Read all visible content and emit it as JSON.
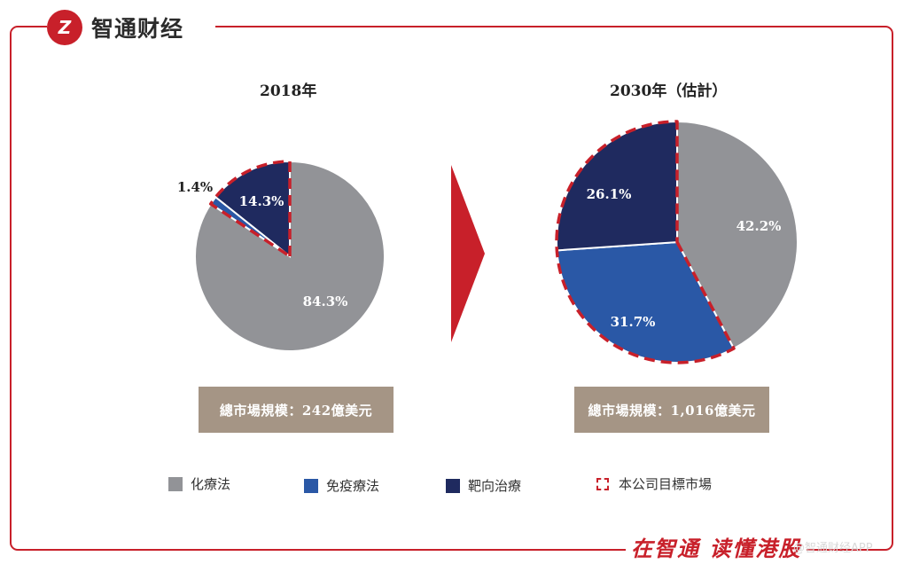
{
  "brand": {
    "logo_glyph": "Z",
    "name": "智通财经"
  },
  "colors": {
    "frame": "#c8202a",
    "chemo": "#929397",
    "immuno": "#2a58a6",
    "targeted": "#1f2a5f",
    "target_market": "#c8202a",
    "size_box": "#a59585"
  },
  "chart_data": [
    {
      "type": "pie",
      "title": "2018年",
      "slices": [
        {
          "name": "化療法",
          "value": 84.3,
          "label": "84.3%"
        },
        {
          "name": "免疫療法",
          "value": 1.4,
          "label": "1.4%"
        },
        {
          "name": "靶向治療",
          "value": 14.3,
          "label": "14.3%"
        }
      ],
      "highlighted": [
        "免疫療法",
        "靶向治療"
      ],
      "market_size": "總市場規模：242億美元"
    },
    {
      "type": "pie",
      "title": "2030年（估計）",
      "slices": [
        {
          "name": "化療法",
          "value": 42.2,
          "label": "42.2%"
        },
        {
          "name": "免疫療法",
          "value": 31.7,
          "label": "31.7%"
        },
        {
          "name": "靶向治療",
          "value": 26.1,
          "label": "26.1%"
        }
      ],
      "highlighted": [
        "免疫療法",
        "靶向治療"
      ],
      "market_size": "總市場規模：1,016億美元"
    }
  ],
  "legend": {
    "chemo": "化療法",
    "immuno": "免疫療法",
    "targeted": "靶向治療",
    "target_market": "本公司目標市場"
  },
  "footer": {
    "slogan": "在智通 读懂港股",
    "watermark": "@智通财经APP"
  }
}
